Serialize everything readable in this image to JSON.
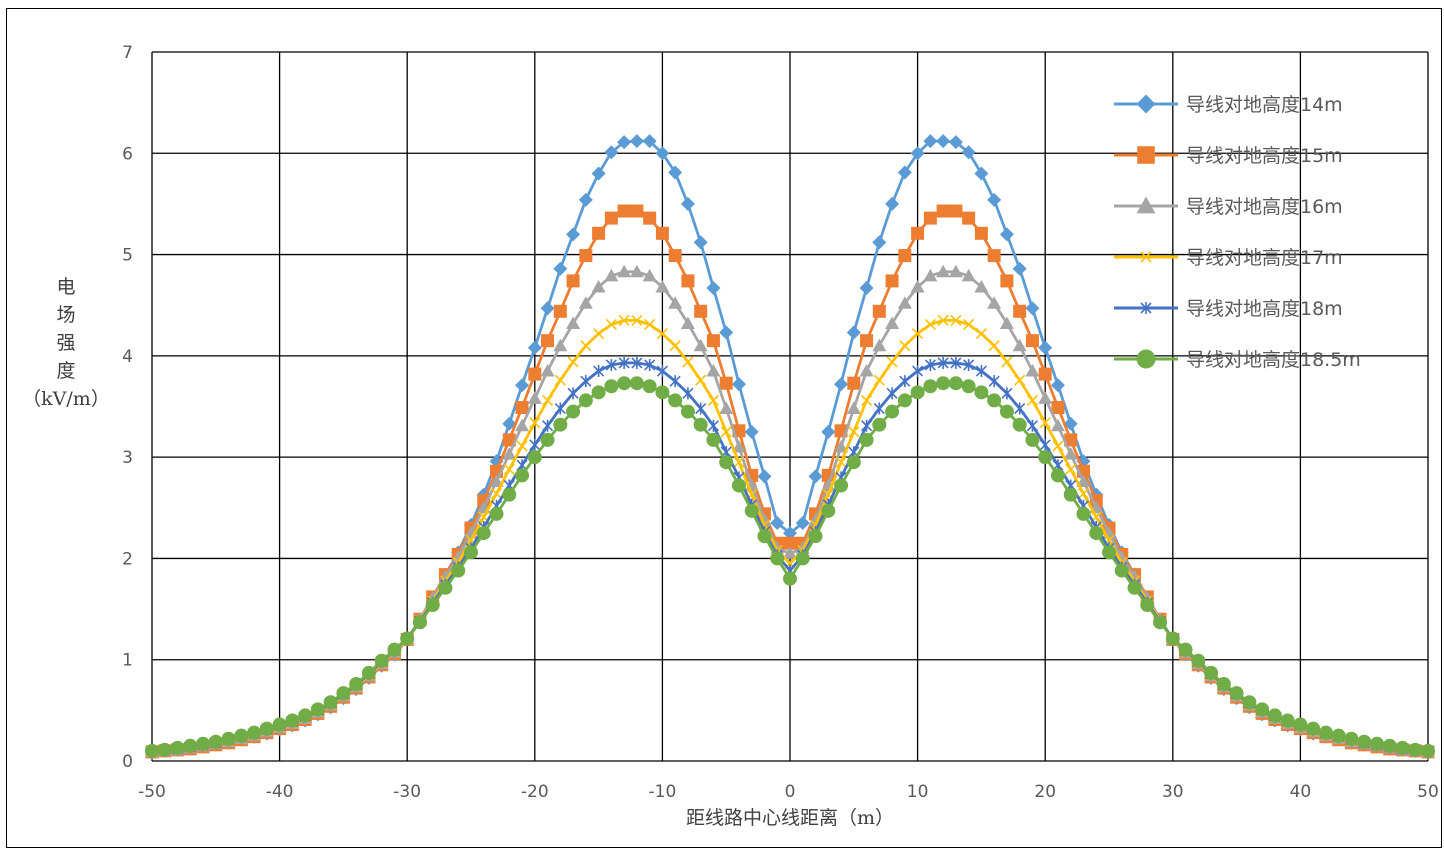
{
  "chart_data": {
    "type": "line",
    "title": "",
    "xlabel": "距线路中心线距离（m）",
    "ylabel": "电场强度（kV/m）",
    "ylabel_lines": [
      "电",
      "场",
      "强",
      "度",
      "（kV/m）"
    ],
    "xlim": [
      -50,
      50
    ],
    "ylim": [
      0,
      7
    ],
    "x_ticks": [
      -50,
      -40,
      -30,
      -20,
      -10,
      0,
      10,
      20,
      30,
      40,
      50
    ],
    "y_ticks": [
      0,
      1,
      2,
      3,
      4,
      5,
      6,
      7
    ],
    "grid": true,
    "legend_position": "top-right",
    "x": [
      -50,
      -49,
      -48,
      -47,
      -46,
      -45,
      -44,
      -43,
      -42,
      -41,
      -40,
      -39,
      -38,
      -37,
      -36,
      -35,
      -34,
      -33,
      -32,
      -31,
      -30,
      -29,
      -28,
      -27,
      -26,
      -25,
      -24,
      -23,
      -22,
      -21,
      -20,
      -19,
      -18,
      -17,
      -16,
      -15,
      -14,
      -13,
      -12,
      -11,
      -10,
      -9,
      -8,
      -7,
      -6,
      -5,
      -4,
      -3,
      -2,
      -1,
      0,
      1,
      2,
      3,
      4,
      5,
      6,
      7,
      8,
      9,
      10,
      11,
      12,
      13,
      14,
      15,
      16,
      17,
      18,
      19,
      20,
      21,
      22,
      23,
      24,
      25,
      26,
      27,
      28,
      29,
      30,
      31,
      32,
      33,
      34,
      35,
      36,
      37,
      38,
      39,
      40,
      41,
      42,
      43,
      44,
      45,
      46,
      47,
      48,
      49,
      50
    ],
    "series": [
      {
        "name": "导线对地高度14m",
        "color": "#5B9BD5",
        "marker": "diamond",
        "values": [
          0.08,
          0.1,
          0.11,
          0.12,
          0.14,
          0.16,
          0.18,
          0.21,
          0.24,
          0.27,
          0.31,
          0.35,
          0.4,
          0.46,
          0.53,
          0.62,
          0.71,
          0.82,
          0.94,
          1.05,
          1.2,
          1.39,
          1.61,
          1.84,
          2.06,
          2.33,
          2.63,
          2.96,
          3.33,
          3.71,
          4.08,
          4.47,
          4.86,
          5.2,
          5.54,
          5.8,
          6.01,
          6.11,
          6.12,
          6.12,
          6.0,
          5.81,
          5.5,
          5.12,
          4.67,
          4.23,
          3.72,
          3.25,
          2.81,
          2.35,
          2.25,
          2.35,
          2.81,
          3.25,
          3.72,
          4.23,
          4.67,
          5.12,
          5.5,
          5.81,
          6.0,
          6.12,
          6.12,
          6.11,
          6.01,
          5.8,
          5.54,
          5.2,
          4.86,
          4.47,
          4.08,
          3.71,
          3.33,
          2.96,
          2.63,
          2.33,
          2.06,
          1.84,
          1.61,
          1.39,
          1.2,
          1.05,
          0.94,
          0.82,
          0.71,
          0.62,
          0.53,
          0.46,
          0.4,
          0.35,
          0.31,
          0.27,
          0.24,
          0.21,
          0.18,
          0.16,
          0.14,
          0.12,
          0.11,
          0.1,
          0.08
        ]
      },
      {
        "name": "导线对地高度15m",
        "color": "#ED7D31",
        "marker": "square",
        "values": [
          0.09,
          0.1,
          0.11,
          0.12,
          0.14,
          0.16,
          0.18,
          0.21,
          0.24,
          0.28,
          0.32,
          0.36,
          0.41,
          0.47,
          0.54,
          0.63,
          0.72,
          0.83,
          0.95,
          1.06,
          1.2,
          1.4,
          1.62,
          1.84,
          2.04,
          2.3,
          2.57,
          2.86,
          3.17,
          3.49,
          3.82,
          4.15,
          4.44,
          4.74,
          4.99,
          5.21,
          5.36,
          5.43,
          5.43,
          5.36,
          5.21,
          4.99,
          4.74,
          4.44,
          4.15,
          3.73,
          3.26,
          2.82,
          2.44,
          2.15,
          2.15,
          2.15,
          2.44,
          2.82,
          3.26,
          3.73,
          4.15,
          4.44,
          4.74,
          4.99,
          5.21,
          5.36,
          5.43,
          5.43,
          5.36,
          5.21,
          4.99,
          4.74,
          4.44,
          4.15,
          3.82,
          3.49,
          3.17,
          2.86,
          2.57,
          2.3,
          2.04,
          1.84,
          1.62,
          1.4,
          1.2,
          1.06,
          0.95,
          0.83,
          0.72,
          0.63,
          0.54,
          0.47,
          0.41,
          0.36,
          0.32,
          0.28,
          0.24,
          0.21,
          0.18,
          0.16,
          0.14,
          0.12,
          0.11,
          0.1,
          0.09
        ]
      },
      {
        "name": "导线对地高度16m",
        "color": "#A5A5A5",
        "marker": "triangle",
        "values": [
          0.09,
          0.1,
          0.11,
          0.13,
          0.15,
          0.17,
          0.19,
          0.22,
          0.25,
          0.29,
          0.33,
          0.37,
          0.42,
          0.48,
          0.55,
          0.64,
          0.73,
          0.84,
          0.96,
          1.07,
          1.2,
          1.4,
          1.61,
          1.82,
          2.01,
          2.25,
          2.5,
          2.76,
          3.03,
          3.31,
          3.58,
          3.85,
          4.1,
          4.32,
          4.52,
          4.68,
          4.79,
          4.83,
          4.83,
          4.79,
          4.68,
          4.52,
          4.32,
          4.1,
          3.85,
          3.48,
          3.1,
          2.72,
          2.38,
          2.1,
          2.05,
          2.1,
          2.38,
          2.72,
          3.1,
          3.48,
          3.85,
          4.1,
          4.32,
          4.52,
          4.68,
          4.79,
          4.83,
          4.83,
          4.79,
          4.68,
          4.52,
          4.32,
          4.1,
          3.85,
          3.58,
          3.31,
          3.03,
          2.76,
          2.5,
          2.25,
          2.01,
          1.82,
          1.61,
          1.4,
          1.2,
          1.07,
          0.96,
          0.84,
          0.73,
          0.64,
          0.55,
          0.48,
          0.42,
          0.37,
          0.33,
          0.29,
          0.25,
          0.22,
          0.19,
          0.17,
          0.15,
          0.13,
          0.11,
          0.1,
          0.09
        ]
      },
      {
        "name": "导线对地高度17m",
        "color": "#FFC000",
        "marker": "x",
        "values": [
          0.09,
          0.11,
          0.12,
          0.14,
          0.16,
          0.18,
          0.2,
          0.23,
          0.26,
          0.3,
          0.34,
          0.38,
          0.43,
          0.49,
          0.56,
          0.65,
          0.74,
          0.85,
          0.97,
          1.08,
          1.2,
          1.39,
          1.58,
          1.78,
          1.96,
          2.18,
          2.41,
          2.64,
          2.88,
          3.11,
          3.34,
          3.56,
          3.76,
          3.94,
          4.1,
          4.22,
          4.31,
          4.35,
          4.35,
          4.31,
          4.22,
          4.1,
          3.94,
          3.76,
          3.56,
          3.25,
          2.95,
          2.63,
          2.33,
          2.08,
          1.95,
          2.08,
          2.33,
          2.63,
          2.95,
          3.25,
          3.56,
          3.76,
          3.94,
          4.1,
          4.22,
          4.31,
          4.35,
          4.35,
          4.31,
          4.22,
          4.1,
          3.94,
          3.76,
          3.56,
          3.34,
          3.11,
          2.88,
          2.64,
          2.41,
          2.18,
          1.96,
          1.78,
          1.58,
          1.39,
          1.2,
          1.08,
          0.97,
          0.85,
          0.74,
          0.65,
          0.56,
          0.49,
          0.43,
          0.38,
          0.34,
          0.3,
          0.26,
          0.23,
          0.2,
          0.18,
          0.16,
          0.14,
          0.12,
          0.11,
          0.09
        ]
      },
      {
        "name": "导线对地高度18m",
        "color": "#4472C4",
        "marker": "star",
        "values": [
          0.1,
          0.11,
          0.12,
          0.14,
          0.16,
          0.18,
          0.21,
          0.24,
          0.27,
          0.31,
          0.35,
          0.39,
          0.44,
          0.5,
          0.57,
          0.66,
          0.75,
          0.86,
          0.98,
          1.09,
          1.21,
          1.38,
          1.56,
          1.74,
          1.91,
          2.1,
          2.31,
          2.52,
          2.72,
          2.92,
          3.12,
          3.31,
          3.48,
          3.63,
          3.75,
          3.85,
          3.91,
          3.93,
          3.93,
          3.91,
          3.85,
          3.75,
          3.63,
          3.48,
          3.31,
          3.05,
          2.8,
          2.53,
          2.26,
          2.03,
          1.88,
          2.03,
          2.26,
          2.53,
          2.8,
          3.05,
          3.31,
          3.48,
          3.63,
          3.75,
          3.85,
          3.91,
          3.93,
          3.93,
          3.91,
          3.85,
          3.75,
          3.63,
          3.48,
          3.31,
          3.12,
          2.92,
          2.72,
          2.52,
          2.31,
          2.1,
          1.91,
          1.74,
          1.56,
          1.38,
          1.21,
          1.09,
          0.98,
          0.86,
          0.75,
          0.66,
          0.57,
          0.5,
          0.44,
          0.39,
          0.35,
          0.31,
          0.27,
          0.24,
          0.21,
          0.18,
          0.16,
          0.14,
          0.12,
          0.11,
          0.1
        ]
      },
      {
        "name": "导线对地高度18.5m",
        "color": "#70AD47",
        "marker": "circle",
        "values": [
          0.1,
          0.11,
          0.13,
          0.15,
          0.17,
          0.19,
          0.22,
          0.25,
          0.28,
          0.32,
          0.36,
          0.4,
          0.45,
          0.51,
          0.58,
          0.67,
          0.76,
          0.87,
          0.99,
          1.1,
          1.21,
          1.37,
          1.54,
          1.71,
          1.88,
          2.06,
          2.25,
          2.44,
          2.63,
          2.82,
          3.0,
          3.17,
          3.32,
          3.45,
          3.56,
          3.64,
          3.7,
          3.73,
          3.73,
          3.7,
          3.64,
          3.56,
          3.45,
          3.32,
          3.17,
          2.95,
          2.72,
          2.47,
          2.22,
          2.0,
          1.8,
          2.0,
          2.22,
          2.47,
          2.72,
          2.95,
          3.17,
          3.32,
          3.45,
          3.56,
          3.64,
          3.7,
          3.73,
          3.73,
          3.7,
          3.64,
          3.56,
          3.45,
          3.32,
          3.17,
          3.0,
          2.82,
          2.63,
          2.44,
          2.25,
          2.06,
          1.88,
          1.71,
          1.54,
          1.37,
          1.21,
          1.1,
          0.99,
          0.87,
          0.76,
          0.67,
          0.58,
          0.51,
          0.45,
          0.4,
          0.36,
          0.32,
          0.28,
          0.25,
          0.22,
          0.19,
          0.17,
          0.15,
          0.13,
          0.11,
          0.1
        ]
      }
    ]
  }
}
